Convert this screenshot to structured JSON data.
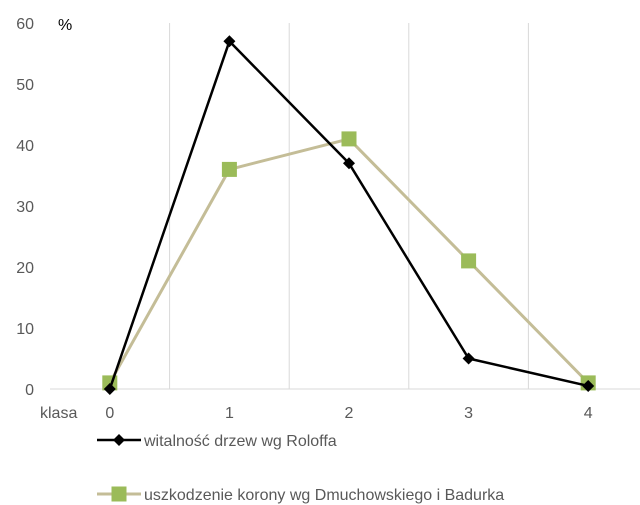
{
  "chart_data": {
    "type": "line",
    "title": "",
    "xlabel": "klasa",
    "ylabel": "%",
    "x": [
      0,
      1,
      2,
      3,
      4
    ],
    "x_tick_labels": [
      "0",
      "1",
      "2",
      "3",
      "4"
    ],
    "ylim": [
      0,
      60
    ],
    "y_ticks": [
      0,
      10,
      20,
      30,
      40,
      50,
      60
    ],
    "y_tick_labels": [
      "0",
      "10",
      "20",
      "30",
      "40",
      "50",
      "60"
    ],
    "grid": "vertical",
    "legend_position": "bottom",
    "series": [
      {
        "name": "witalność drzew wg Roloffa",
        "values": [
          0,
          57,
          37,
          5,
          0.5
        ],
        "color": "#000000",
        "marker": "diamond"
      },
      {
        "name": "uszkodzenie korony wg Dmuchowskiego i Badurka",
        "values": [
          1,
          36,
          41,
          21,
          1
        ],
        "color": "#C4BD97",
        "marker_color": "#9BBB59",
        "marker": "square"
      }
    ]
  }
}
